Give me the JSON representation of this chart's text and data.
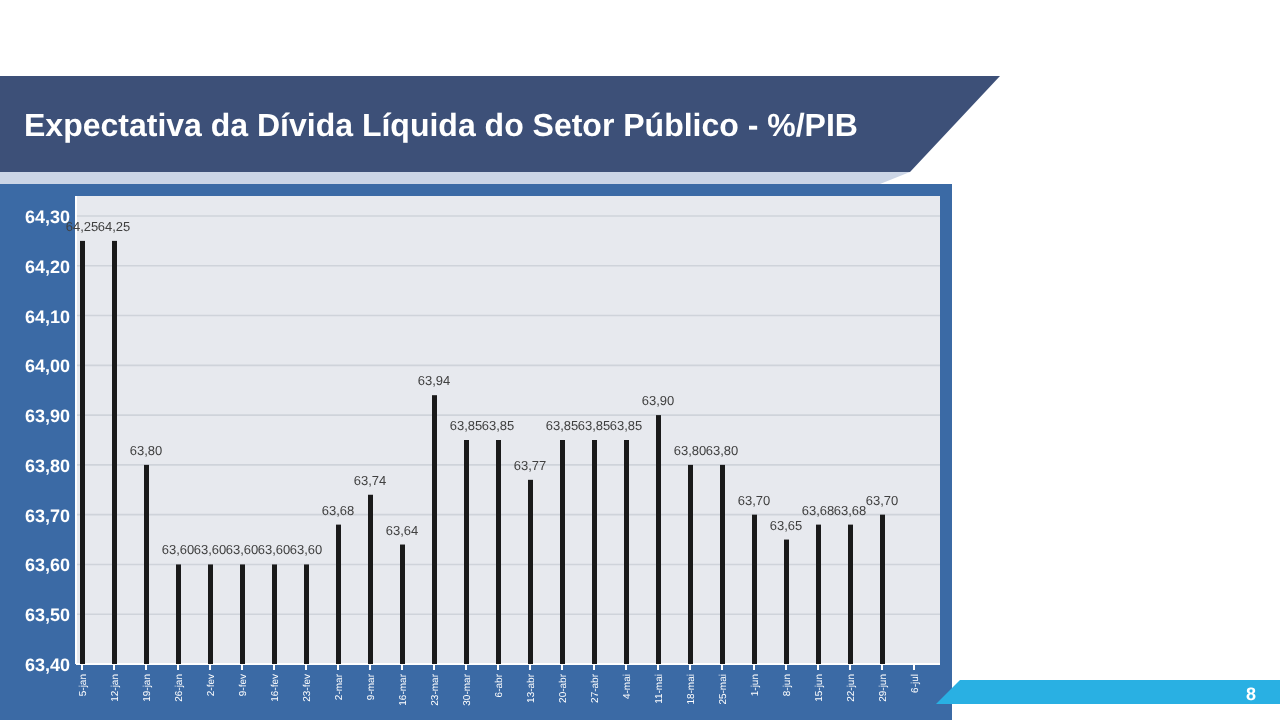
{
  "chart_data": {
    "type": "bar",
    "title": "Expectativa da Dívida Líquida do Setor Público - %/PIB",
    "categories": [
      "5-jan",
      "12-jan",
      "19-jan",
      "26-jan",
      "2-fev",
      "9-fev",
      "16-fev",
      "23-fev",
      "2-mar",
      "9-mar",
      "16-mar",
      "23-mar",
      "30-mar",
      "6-abr",
      "13-abr",
      "20-abr",
      "27-abr",
      "4-mai",
      "11-mai",
      "18-mai",
      "25-mai",
      "1-jun",
      "8-jun",
      "15-jun",
      "22-jun",
      "29-jun",
      "6-jul"
    ],
    "values": [
      64.25,
      64.25,
      63.8,
      63.6,
      63.6,
      63.6,
      63.6,
      63.6,
      63.68,
      63.74,
      63.64,
      63.94,
      63.85,
      63.85,
      63.77,
      63.85,
      63.85,
      63.85,
      63.9,
      63.8,
      63.8,
      63.7,
      63.65,
      63.68,
      63.68,
      63.7,
      null
    ],
    "value_labels": [
      "64,25",
      "64,25",
      "63,80",
      "63,60",
      "63,60",
      "63,60",
      "63,60",
      "63,60",
      "63,68",
      "63,74",
      "63,64",
      "63,94",
      "63,85",
      "63,85",
      "63,77",
      "63,85",
      "63,85",
      "63,85",
      "63,90",
      "63,80",
      "63,80",
      "63,70",
      "63,65",
      "63,68",
      "63,68",
      "63,70",
      null
    ],
    "color": "#1a1a1a",
    "ylim": [
      63.4,
      64.3
    ],
    "yticks": [
      {
        "value": 63.4,
        "label": "63,40"
      },
      {
        "value": 63.5,
        "label": "63,50"
      },
      {
        "value": 63.6,
        "label": "63,60"
      },
      {
        "value": 63.7,
        "label": "63,70"
      },
      {
        "value": 63.8,
        "label": "63,80"
      },
      {
        "value": 63.9,
        "label": "63,90"
      },
      {
        "value": 64.0,
        "label": "64,00"
      },
      {
        "value": 64.1,
        "label": "64,10"
      },
      {
        "value": 64.2,
        "label": "64,20"
      },
      {
        "value": 64.3,
        "label": "64,30"
      }
    ],
    "grid": "y",
    "annotations": [
      "8"
    ]
  }
}
